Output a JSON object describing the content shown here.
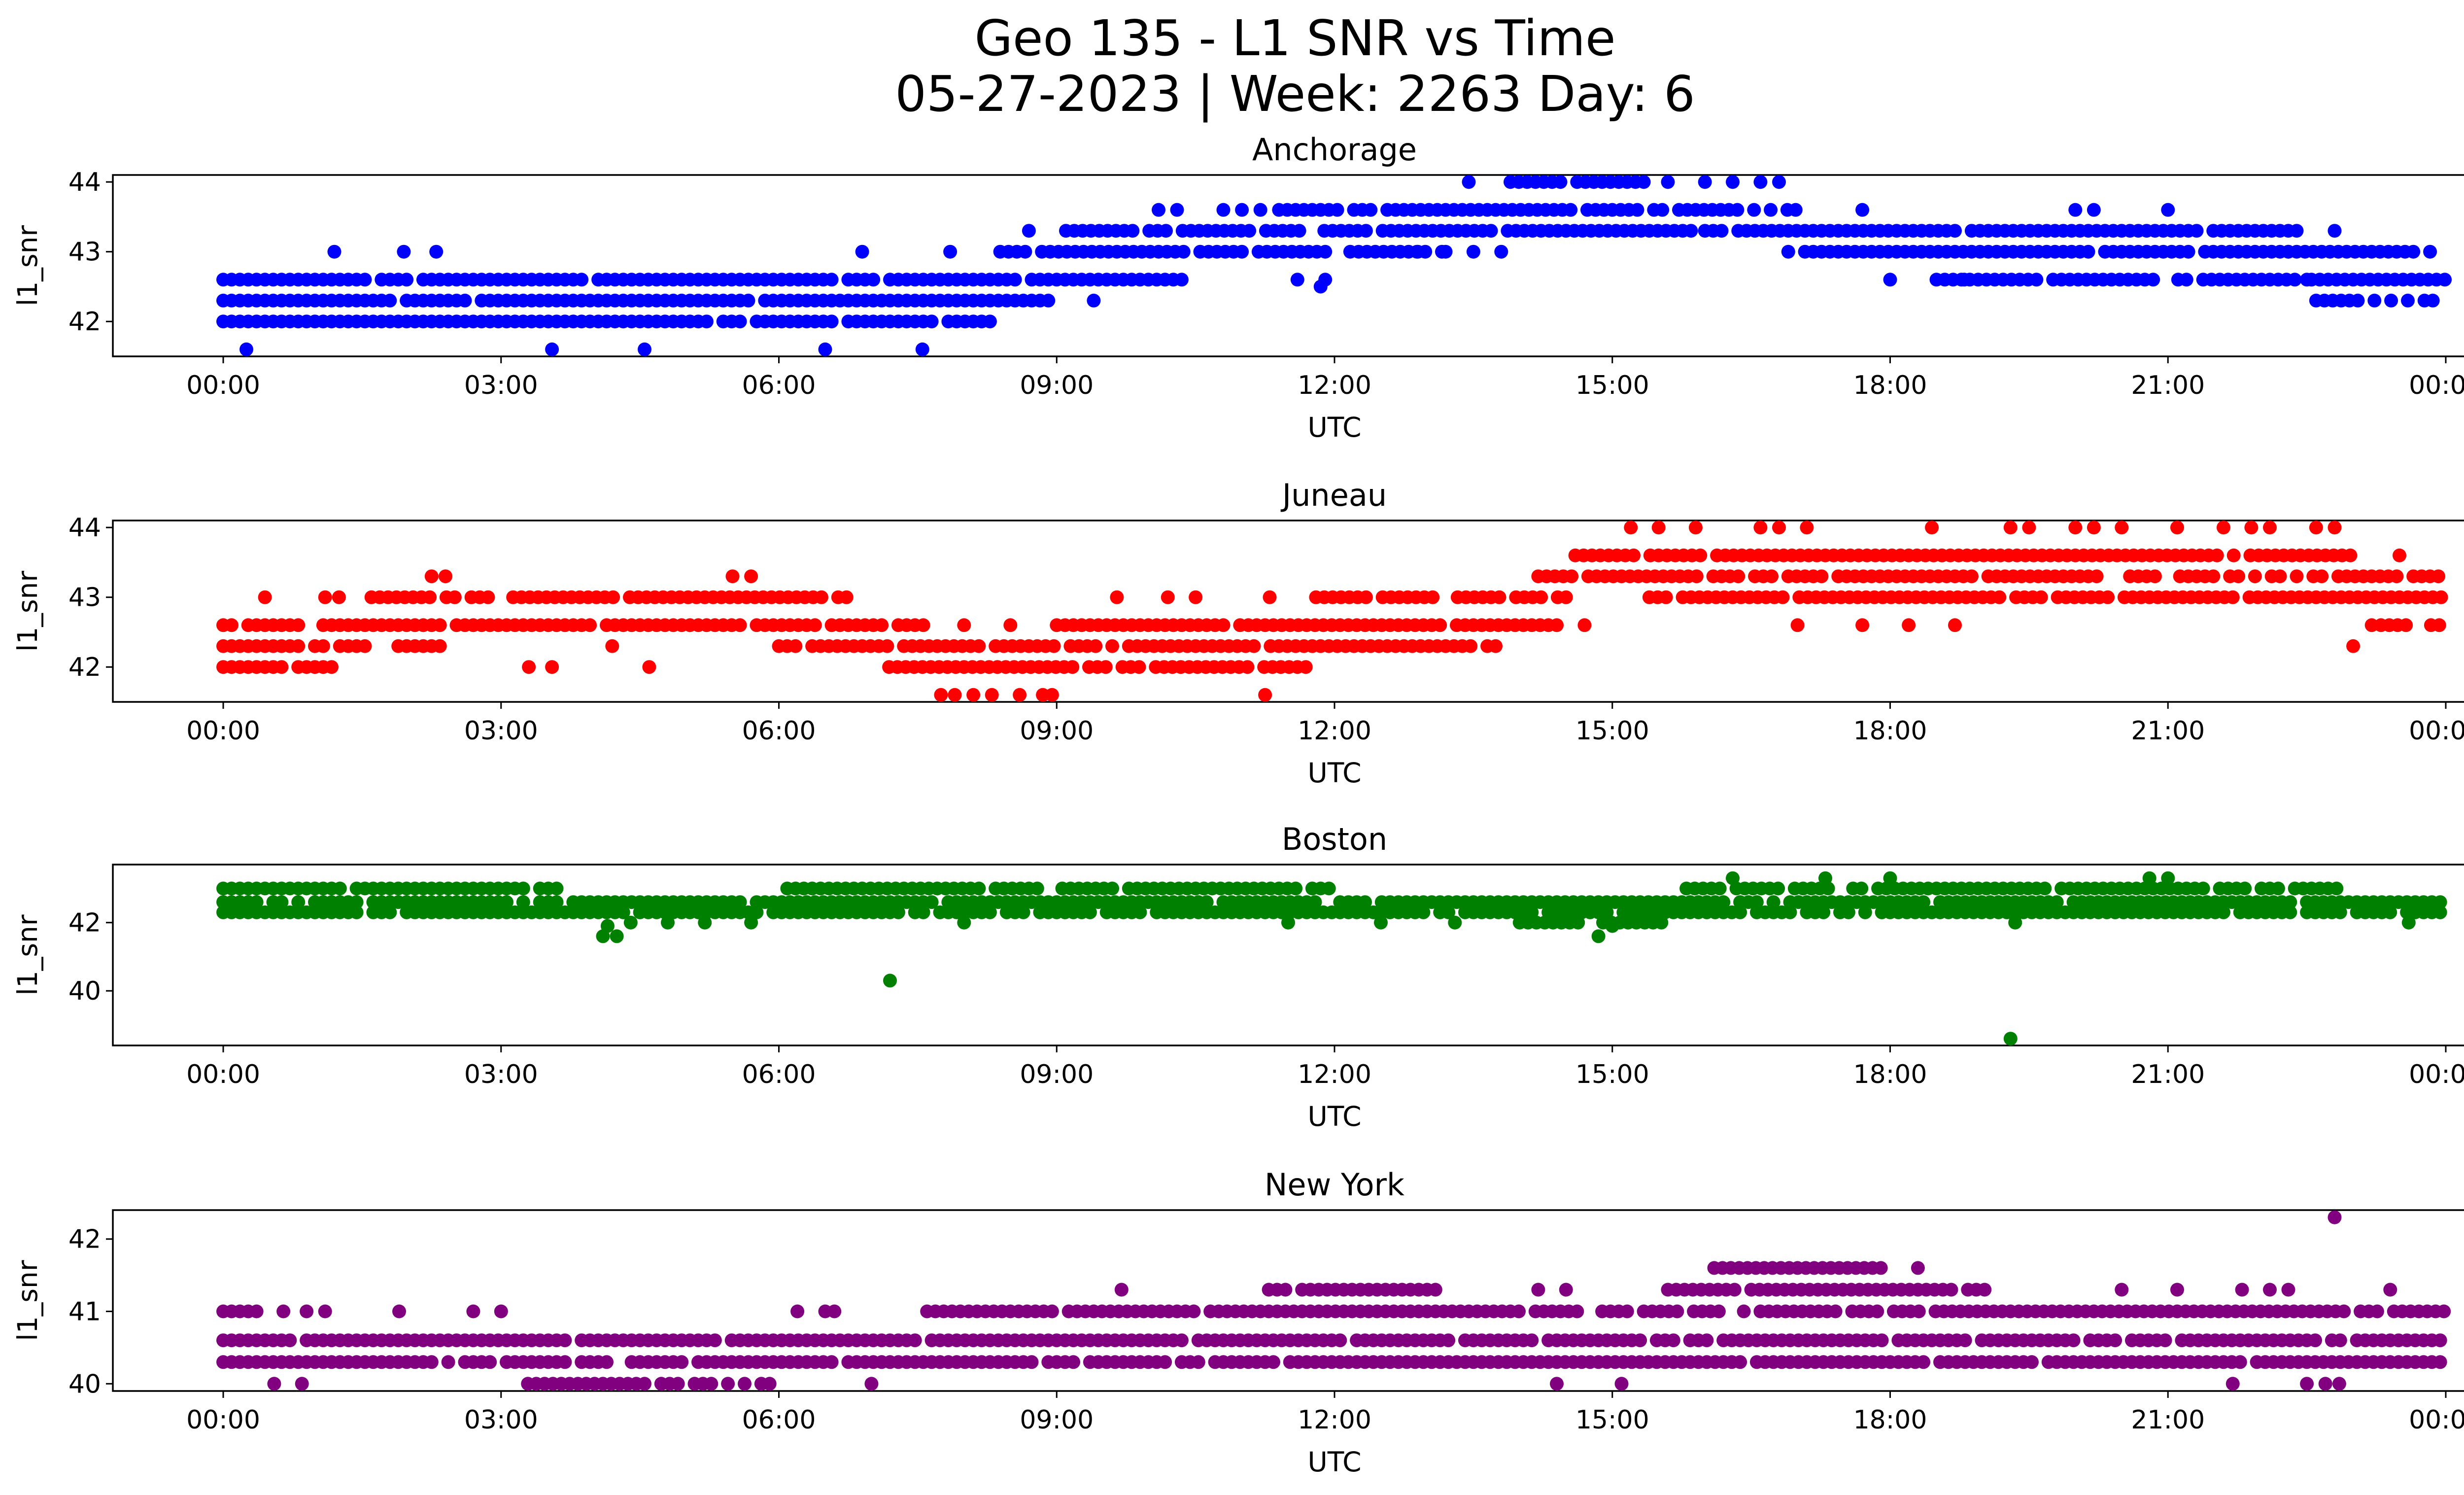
{
  "title_line1": "Geo 135 - L1 SNR vs Time",
  "title_line2": "05-27-2023 | Week: 2263 Day: 6",
  "chart_data": [
    {
      "type": "scatter",
      "title": "Anchorage",
      "xlabel": "UTC",
      "ylabel": "l1_snr",
      "color": "#0000ff",
      "xlim": [
        "00:00",
        "24:00"
      ],
      "ylim": [
        41.5,
        44.1
      ],
      "xticks": [
        "00:00",
        "03:00",
        "06:00",
        "09:00",
        "12:00",
        "15:00",
        "18:00",
        "21:00",
        "00:00"
      ],
      "yticks": [
        42,
        43,
        44
      ],
      "series": [
        {
          "bands": [
            {
              "y": 42.0,
              "from": 0.0,
              "to": 8.3
            },
            {
              "y": 42.3,
              "from": 0.0,
              "to": 9.0
            },
            {
              "y": 42.6,
              "from": 0.0,
              "to": 10.4
            },
            {
              "y": 43.0,
              "from": 8.3,
              "to": 13.2
            },
            {
              "y": 43.3,
              "from": 9.1,
              "to": 15.9
            },
            {
              "y": 43.6,
              "from": 11.4,
              "to": 17.1
            },
            {
              "y": 44.0,
              "from": 13.9,
              "to": 15.4
            },
            {
              "y": 43.3,
              "from": 16.0,
              "to": 22.4
            },
            {
              "y": 43.0,
              "from": 16.9,
              "to": 23.9
            },
            {
              "y": 42.6,
              "from": 18.5,
              "to": 24.0
            },
            {
              "y": 42.3,
              "from": 22.6,
              "to": 24.0
            }
          ],
          "points": [
            [
              0.25,
              41.6
            ],
            [
              3.55,
              41.6
            ],
            [
              4.55,
              41.6
            ],
            [
              6.5,
              41.6
            ],
            [
              7.55,
              41.6
            ],
            [
              1.2,
              43.0
            ],
            [
              1.95,
              43.0
            ],
            [
              2.3,
              43.0
            ],
            [
              6.9,
              43.0
            ],
            [
              7.85,
              43.0
            ],
            [
              8.7,
              43.3
            ],
            [
              10.1,
              43.6
            ],
            [
              10.3,
              43.6
            ],
            [
              10.8,
              43.6
            ],
            [
              11.0,
              43.6
            ],
            [
              11.2,
              43.6
            ],
            [
              9.4,
              42.3
            ],
            [
              11.6,
              42.6
            ],
            [
              11.9,
              42.6
            ],
            [
              11.85,
              42.5
            ],
            [
              12.9,
              43.0
            ],
            [
              13.2,
              43.0
            ],
            [
              13.5,
              43.0
            ],
            [
              13.8,
              43.0
            ],
            [
              13.45,
              44.0
            ],
            [
              15.6,
              44.0
            ],
            [
              16.0,
              44.0
            ],
            [
              16.3,
              44.0
            ],
            [
              16.6,
              44.0
            ],
            [
              16.8,
              44.0
            ],
            [
              17.7,
              43.6
            ],
            [
              18.0,
              42.6
            ],
            [
              18.8,
              42.6
            ],
            [
              20.0,
              43.6
            ],
            [
              20.2,
              43.6
            ],
            [
              21.0,
              43.6
            ],
            [
              22.3,
              43.0
            ],
            [
              22.8,
              43.3
            ],
            [
              22.5,
              42.6
            ]
          ]
        }
      ]
    },
    {
      "type": "scatter",
      "title": "Juneau",
      "xlabel": "UTC",
      "ylabel": "l1_snr",
      "color": "#ff0000",
      "xlim": [
        "00:00",
        "24:00"
      ],
      "ylim": [
        41.5,
        44.1
      ],
      "xticks": [
        "00:00",
        "03:00",
        "06:00",
        "09:00",
        "12:00",
        "15:00",
        "18:00",
        "21:00",
        "00:00"
      ],
      "yticks": [
        42,
        43,
        44
      ],
      "series": [
        {
          "bands": [
            {
              "y": 42.0,
              "from": 0.0,
              "to": 1.3
            },
            {
              "y": 42.3,
              "from": 0.0,
              "to": 2.4
            },
            {
              "y": 42.6,
              "from": 0.0,
              "to": 7.6
            },
            {
              "y": 43.0,
              "from": 1.6,
              "to": 6.8
            },
            {
              "y": 42.3,
              "from": 6.0,
              "to": 13.8
            },
            {
              "y": 42.0,
              "from": 7.1,
              "to": 11.7
            },
            {
              "y": 42.6,
              "from": 9.0,
              "to": 14.4
            },
            {
              "y": 43.0,
              "from": 11.8,
              "to": 14.5
            },
            {
              "y": 43.3,
              "from": 14.2,
              "to": 24.0
            },
            {
              "y": 43.6,
              "from": 14.6,
              "to": 23.1
            },
            {
              "y": 43.0,
              "from": 15.4,
              "to": 24.0
            },
            {
              "y": 42.6,
              "from": 23.3,
              "to": 24.0
            }
          ],
          "points": [
            [
              2.25,
              43.3
            ],
            [
              2.4,
              43.3
            ],
            [
              5.5,
              43.3
            ],
            [
              5.7,
              43.3
            ],
            [
              0.45,
              43.0
            ],
            [
              1.1,
              43.0
            ],
            [
              1.25,
              43.0
            ],
            [
              3.3,
              42.0
            ],
            [
              3.55,
              42.0
            ],
            [
              4.6,
              42.0
            ],
            [
              4.2,
              42.3
            ],
            [
              7.75,
              41.6
            ],
            [
              7.9,
              41.6
            ],
            [
              8.1,
              41.6
            ],
            [
              8.3,
              41.6
            ],
            [
              8.6,
              41.6
            ],
            [
              8.85,
              41.6
            ],
            [
              8.95,
              41.6
            ],
            [
              11.25,
              41.6
            ],
            [
              8.0,
              42.6
            ],
            [
              8.5,
              42.6
            ],
            [
              9.65,
              43.0
            ],
            [
              10.2,
              43.0
            ],
            [
              10.5,
              43.0
            ],
            [
              11.3,
              43.0
            ],
            [
              14.7,
              42.6
            ],
            [
              17.0,
              42.6
            ],
            [
              17.7,
              42.6
            ],
            [
              18.2,
              42.6
            ],
            [
              18.7,
              42.6
            ],
            [
              15.2,
              44.0
            ],
            [
              15.5,
              44.0
            ],
            [
              15.9,
              44.0
            ],
            [
              16.6,
              44.0
            ],
            [
              16.8,
              44.0
            ],
            [
              17.1,
              44.0
            ],
            [
              18.45,
              44.0
            ],
            [
              19.3,
              44.0
            ],
            [
              19.5,
              44.0
            ],
            [
              20.0,
              44.0
            ],
            [
              20.2,
              44.0
            ],
            [
              20.5,
              44.0
            ],
            [
              21.1,
              44.0
            ],
            [
              21.6,
              44.0
            ],
            [
              21.9,
              44.0
            ],
            [
              22.1,
              44.0
            ],
            [
              22.6,
              44.0
            ],
            [
              22.8,
              44.0
            ],
            [
              23.0,
              42.3
            ],
            [
              23.5,
              43.6
            ],
            [
              23.2,
              42.6
            ]
          ]
        }
      ]
    },
    {
      "type": "scatter",
      "title": "Boston",
      "xlabel": "UTC",
      "ylabel": "l1_snr",
      "color": "#008000",
      "xlim": [
        "00:00",
        "24:00"
      ],
      "ylim": [
        38.4,
        43.7
      ],
      "xticks": [
        "00:00",
        "03:00",
        "06:00",
        "09:00",
        "12:00",
        "15:00",
        "18:00",
        "21:00",
        "00:00"
      ],
      "yticks": [
        40,
        42
      ],
      "series": [
        {
          "bands": [
            {
              "y": 42.3,
              "from": 0.0,
              "to": 24.0
            },
            {
              "y": 42.6,
              "from": 0.0,
              "to": 24.0
            },
            {
              "y": 43.0,
              "from": 0.0,
              "to": 3.6
            },
            {
              "y": 43.0,
              "from": 6.0,
              "to": 12.0
            },
            {
              "y": 42.0,
              "from": 14.0,
              "to": 15.6
            },
            {
              "y": 43.0,
              "from": 15.8,
              "to": 22.9
            }
          ],
          "points": [
            [
              4.1,
              41.6
            ],
            [
              4.25,
              41.6
            ],
            [
              4.15,
              41.9
            ],
            [
              4.4,
              42.0
            ],
            [
              4.8,
              42.0
            ],
            [
              5.2,
              42.0
            ],
            [
              5.7,
              42.0
            ],
            [
              7.2,
              40.3
            ],
            [
              8.0,
              42.0
            ],
            [
              11.5,
              42.0
            ],
            [
              12.5,
              42.0
            ],
            [
              13.3,
              42.0
            ],
            [
              14.85,
              41.6
            ],
            [
              15.0,
              41.9
            ],
            [
              16.3,
              43.3
            ],
            [
              17.3,
              43.3
            ],
            [
              18.0,
              43.3
            ],
            [
              20.8,
              43.3
            ],
            [
              21.0,
              43.3
            ],
            [
              19.3,
              38.6
            ],
            [
              19.35,
              42.0
            ],
            [
              23.6,
              42.0
            ]
          ]
        }
      ]
    },
    {
      "type": "scatter",
      "title": "New York",
      "xlabel": "UTC",
      "ylabel": "l1_snr",
      "color": "#800080",
      "xlim": [
        "00:00",
        "24:00"
      ],
      "ylim": [
        39.9,
        42.4
      ],
      "xticks": [
        "00:00",
        "03:00",
        "06:00",
        "09:00",
        "12:00",
        "15:00",
        "18:00",
        "21:00",
        "00:00"
      ],
      "yticks": [
        40,
        41,
        42
      ],
      "series": [
        {
          "bands": [
            {
              "y": 40.3,
              "from": 0.0,
              "to": 24.0
            },
            {
              "y": 40.6,
              "from": 0.0,
              "to": 24.0
            },
            {
              "y": 41.0,
              "from": 0.0,
              "to": 0.4
            },
            {
              "y": 41.0,
              "from": 7.6,
              "to": 24.0
            },
            {
              "y": 41.3,
              "from": 11.2,
              "to": 13.2
            },
            {
              "y": 41.3,
              "from": 15.6,
              "to": 19.1
            },
            {
              "y": 41.6,
              "from": 16.1,
              "to": 17.9
            },
            {
              "y": 40.0,
              "from": 3.2,
              "to": 5.9
            }
          ],
          "points": [
            [
              0.55,
              40.0
            ],
            [
              0.85,
              40.0
            ],
            [
              0.65,
              41.0
            ],
            [
              0.9,
              41.0
            ],
            [
              1.1,
              41.0
            ],
            [
              1.9,
              41.0
            ],
            [
              2.7,
              41.0
            ],
            [
              3.0,
              41.0
            ],
            [
              6.2,
              41.0
            ],
            [
              6.5,
              41.0
            ],
            [
              6.6,
              41.0
            ],
            [
              7.0,
              40.0
            ],
            [
              9.7,
              41.3
            ],
            [
              14.4,
              40.0
            ],
            [
              15.1,
              40.0
            ],
            [
              14.2,
              41.3
            ],
            [
              14.5,
              41.3
            ],
            [
              18.3,
              41.6
            ],
            [
              20.5,
              41.3
            ],
            [
              21.1,
              41.3
            ],
            [
              21.8,
              41.3
            ],
            [
              22.1,
              41.3
            ],
            [
              22.3,
              41.3
            ],
            [
              23.4,
              41.3
            ],
            [
              21.7,
              40.0
            ],
            [
              22.5,
              40.0
            ],
            [
              22.7,
              40.0
            ],
            [
              22.85,
              40.0
            ],
            [
              22.8,
              42.3
            ]
          ]
        }
      ]
    }
  ]
}
